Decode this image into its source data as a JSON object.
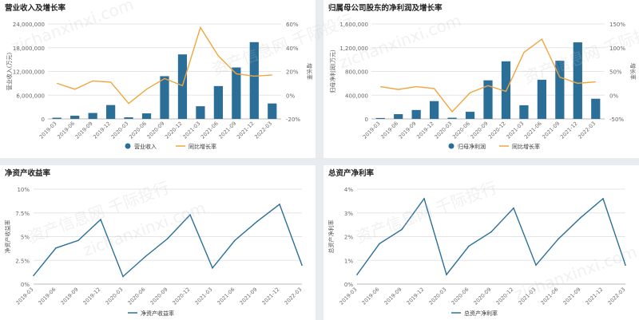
{
  "watermark": {
    "line1": "资产信息网 千际投行",
    "line2": "zichanxinxi.com"
  },
  "chart_data": [
    {
      "id": "revenue",
      "type": "bar+line",
      "title": "营业收入及增长率",
      "categories": [
        "2019-03",
        "2019-06",
        "2019-09",
        "2019-12",
        "2020-03",
        "2020-06",
        "2020-09",
        "2020-12",
        "2021-03",
        "2021-06",
        "2021-09",
        "2021-12",
        "2022-03"
      ],
      "bar": {
        "name": "营业收入",
        "values": [
          300000,
          800000,
          1500000,
          3500000,
          400000,
          1400000,
          10800000,
          16300000,
          3200000,
          8300000,
          13000000,
          19400000,
          3900000
        ]
      },
      "line": {
        "name": "同比增长率",
        "values": [
          10,
          5,
          12,
          11,
          -7,
          5,
          14,
          8,
          57,
          33,
          18,
          16,
          17
        ]
      },
      "ylabel_left": "营业收入(万元)",
      "ylabel_right": "增长率",
      "ylim_left": [
        0,
        24000000
      ],
      "yticks_left": [
        "0",
        "6,000,000",
        "12,000,000",
        "18,000,000",
        "24,000,000"
      ],
      "ylim_right": [
        -20,
        60
      ],
      "yticks_right": [
        "-20%",
        "0%",
        "20%",
        "40%",
        "60%"
      ],
      "colors": {
        "bar": "#2b6f99",
        "line": "#f0a640"
      }
    },
    {
      "id": "netprofit",
      "type": "bar+line",
      "title": "归属母公司股东的净利润及增长率",
      "categories": [
        "2019-03",
        "2019-06",
        "2019-09",
        "2019-12",
        "2020-03",
        "2020-06",
        "2020-09",
        "2020-12",
        "2021-03",
        "2021-06",
        "2021-09",
        "2021-12",
        "2022-03"
      ],
      "bar": {
        "name": "归母净利润",
        "values": [
          15000,
          80000,
          150000,
          300000,
          20000,
          120000,
          650000,
          970000,
          230000,
          660000,
          980000,
          1290000,
          340000
        ]
      },
      "line": {
        "name": "同比增长率",
        "values": [
          18,
          12,
          18,
          14,
          -35,
          5,
          20,
          8,
          90,
          118,
          38,
          25,
          28
        ]
      },
      "ylabel_left": "归母净利润(万元)",
      "ylabel_right": "增长率",
      "ylim_left": [
        0,
        1600000
      ],
      "yticks_left": [
        "0",
        "400,000",
        "800,000",
        "1,200,000",
        "1,600,000"
      ],
      "ylim_right": [
        -50,
        150
      ],
      "yticks_right": [
        "-50%",
        "0%",
        "50%",
        "100%",
        "150%"
      ],
      "colors": {
        "bar": "#2b6f99",
        "line": "#f0a640"
      }
    },
    {
      "id": "roe",
      "type": "line",
      "title": "净资产收益率",
      "categories": [
        "2019-03",
        "2019-06",
        "2019-09",
        "2019-12",
        "2020-03",
        "2020-06",
        "2020-09",
        "2020-12",
        "2021-03",
        "2021-06",
        "2021-09",
        "2021-12",
        "2022-03"
      ],
      "series": [
        {
          "name": "净资产收益率",
          "values": [
            0.9,
            3.8,
            4.6,
            6.8,
            0.8,
            2.9,
            4.8,
            7.3,
            1.7,
            4.6,
            6.6,
            8.4,
            2.0
          ]
        }
      ],
      "ylabel": "净资产收益率",
      "ylim": [
        0,
        10
      ],
      "yticks": [
        "0%",
        "2.5%",
        "5%",
        "7.5%",
        "10%"
      ],
      "colors": {
        "line": "#2b6f99"
      }
    },
    {
      "id": "roa",
      "type": "line",
      "title": "总资产净利率",
      "categories": [
        "2019-03",
        "2019-06",
        "2019-09",
        "2019-12",
        "2020-03",
        "2020-06",
        "2020-09",
        "2020-12",
        "2021-03",
        "2021-06",
        "2021-09",
        "2021-12",
        "2022-03"
      ],
      "series": [
        {
          "name": "总资产净利率",
          "values": [
            0.4,
            1.7,
            2.3,
            3.6,
            0.4,
            1.6,
            2.2,
            3.2,
            0.8,
            1.9,
            2.8,
            3.6,
            0.8
          ]
        }
      ],
      "ylabel": "总资产净利率",
      "ylim": [
        0,
        4
      ],
      "yticks": [
        "0%",
        "1%",
        "2%",
        "3%",
        "4%"
      ],
      "colors": {
        "line": "#2b6f99"
      }
    }
  ]
}
